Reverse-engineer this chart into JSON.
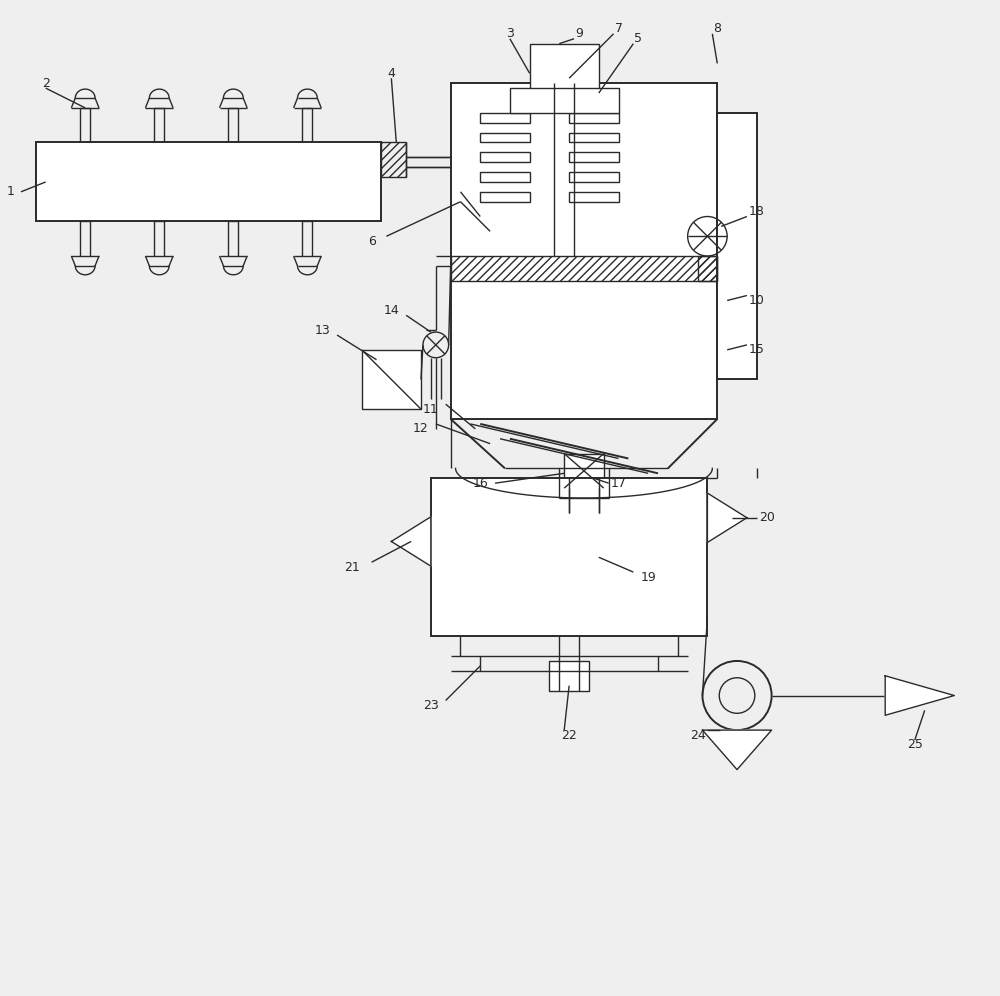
{
  "bg_color": "#f0f0f0",
  "line_color": "#2a2a2a",
  "lw": 1.4,
  "thin_lw": 1.0,
  "fs": 9
}
